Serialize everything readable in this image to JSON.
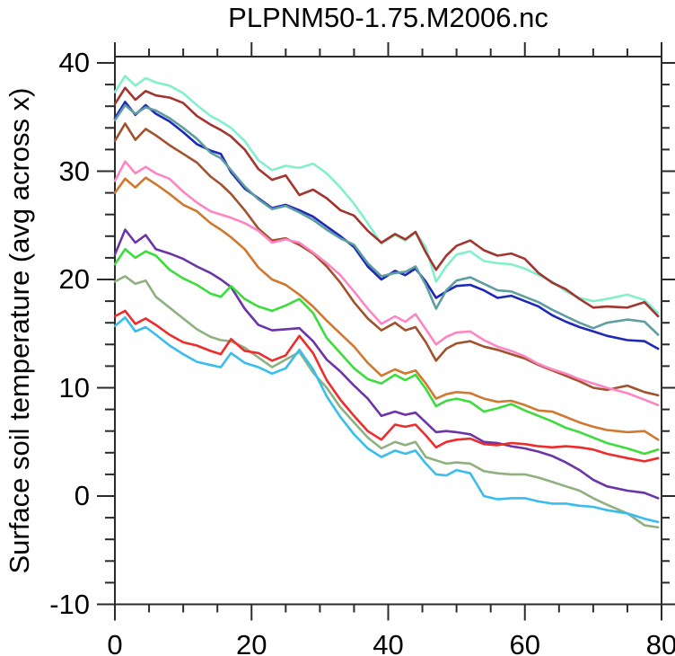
{
  "title": "PLPNM50-1.75.M2006.nc",
  "y_axis_label": "Surface soil temperature (avg across x)",
  "colors": {
    "frame": "#2b2b2b",
    "text": "#000000",
    "background": "#ffffff"
  },
  "chart_data": {
    "type": "line",
    "title": "PLPNM50-1.75.M2006.nc",
    "xlabel": "",
    "ylabel": "Surface soil temperature (avg across x)",
    "xlim": [
      0,
      80
    ],
    "ylim": [
      -10,
      40
    ],
    "x_ticks": [
      0,
      20,
      40,
      60,
      80
    ],
    "y_ticks": [
      40,
      30,
      20,
      10,
      0,
      -10
    ],
    "x_minor_step": 5,
    "y_minor_step": 2,
    "grid": false,
    "legend_position": "none",
    "x": [
      0,
      1.5,
      3,
      4.5,
      6,
      8,
      10,
      12,
      14,
      15.5,
      17,
      19,
      21,
      23,
      25,
      27,
      29,
      31,
      33,
      35,
      37,
      39,
      41,
      42.5,
      44,
      45.5,
      47,
      48.5,
      50,
      52,
      54,
      56,
      58,
      60,
      62,
      64,
      66,
      68,
      70,
      72,
      75,
      77.5,
      79.5
    ],
    "series": [
      {
        "name": "aquamarine",
        "color": "#84EFCD",
        "values": [
          37.3,
          38.8,
          37.9,
          38.6,
          38.2,
          37.9,
          37.2,
          36.1,
          35.1,
          34.6,
          34.0,
          32.8,
          31.0,
          30.1,
          30.5,
          30.3,
          30.7,
          29.8,
          28.5,
          27.0,
          25.2,
          23.3,
          24.1,
          23.6,
          24.3,
          23.0,
          19.8,
          21.2,
          22.3,
          22.6,
          21.7,
          21.5,
          21.4,
          21.0,
          20.4,
          19.8,
          18.9,
          18.3,
          18.0,
          18.2,
          18.6,
          18.1,
          16.9
        ]
      },
      {
        "name": "brown-red",
        "color": "#A3342E",
        "values": [
          36.2,
          37.7,
          36.6,
          37.4,
          37.0,
          36.8,
          36.3,
          35.1,
          34.3,
          33.8,
          33.2,
          32.0,
          30.2,
          29.2,
          29.6,
          27.8,
          28.3,
          27.5,
          26.4,
          25.9,
          24.5,
          23.4,
          24.2,
          23.7,
          24.4,
          22.5,
          20.9,
          22.2,
          23.1,
          23.6,
          22.7,
          22.2,
          22.4,
          21.9,
          20.6,
          19.7,
          19.1,
          18.2,
          17.4,
          17.5,
          17.4,
          17.9,
          16.6
        ]
      },
      {
        "name": "navy-blue",
        "color": "#1E28B8",
        "values": [
          34.9,
          36.4,
          35.2,
          36.1,
          35.3,
          34.6,
          33.6,
          32.5,
          31.9,
          31.6,
          29.9,
          28.4,
          27.5,
          26.6,
          26.9,
          26.4,
          25.8,
          24.9,
          24.0,
          23.0,
          21.2,
          20.0,
          20.8,
          20.4,
          21.0,
          19.8,
          18.3,
          18.9,
          19.4,
          19.5,
          19.0,
          18.3,
          18.5,
          18.0,
          17.5,
          16.7,
          16.1,
          15.6,
          15.2,
          14.8,
          14.4,
          14.3,
          13.6
        ]
      },
      {
        "name": "cadet-blue",
        "color": "#5F9EA0",
        "values": [
          34.7,
          36.1,
          35.3,
          35.9,
          35.6,
          34.9,
          34.0,
          33.0,
          31.7,
          31.2,
          30.1,
          28.6,
          27.4,
          26.5,
          26.8,
          26.2,
          25.5,
          24.6,
          23.8,
          23.2,
          21.5,
          20.3,
          20.6,
          20.7,
          21.2,
          19.5,
          17.3,
          19.0,
          19.9,
          20.2,
          19.6,
          19.0,
          18.9,
          18.4,
          17.9,
          17.2,
          16.6,
          16.0,
          15.5,
          16.0,
          16.3,
          16.1,
          14.9
        ]
      },
      {
        "name": "sienna",
        "color": "#A0522D",
        "values": [
          32.8,
          34.4,
          32.9,
          33.9,
          33.3,
          32.4,
          31.6,
          30.8,
          29.5,
          28.8,
          27.9,
          26.4,
          24.7,
          23.6,
          23.8,
          23.2,
          22.4,
          21.2,
          19.7,
          17.9,
          16.4,
          15.3,
          16.0,
          15.3,
          15.6,
          14.2,
          12.5,
          13.6,
          14.1,
          14.3,
          13.8,
          13.5,
          13.1,
          12.7,
          12.1,
          11.6,
          11.1,
          10.6,
          10.0,
          9.8,
          10.2,
          9.6,
          9.3
        ]
      },
      {
        "name": "pink",
        "color": "#FF85C2",
        "values": [
          29.1,
          30.9,
          29.8,
          30.4,
          29.8,
          29.3,
          28.1,
          27.1,
          26.3,
          26.0,
          25.7,
          25.2,
          24.5,
          23.4,
          23.7,
          23.4,
          22.5,
          21.5,
          20.4,
          18.9,
          17.3,
          15.9,
          16.6,
          16.1,
          16.8,
          15.4,
          14.0,
          14.7,
          15.1,
          15.2,
          14.4,
          13.8,
          13.4,
          12.9,
          12.2,
          11.7,
          11.3,
          10.8,
          10.4,
          10.0,
          9.5,
          8.9,
          8.4
        ]
      },
      {
        "name": "orange",
        "color": "#D2772E",
        "values": [
          28.0,
          29.3,
          28.5,
          29.4,
          28.8,
          27.9,
          26.9,
          26.3,
          25.2,
          24.6,
          23.9,
          22.8,
          21.1,
          20.0,
          19.5,
          18.6,
          17.5,
          16.2,
          15.0,
          13.8,
          12.3,
          11.1,
          11.7,
          11.3,
          11.6,
          10.4,
          9.0,
          9.4,
          9.6,
          9.5,
          9.0,
          8.7,
          8.8,
          8.4,
          7.9,
          7.8,
          7.3,
          6.8,
          6.4,
          6.1,
          5.9,
          6.0,
          5.2
        ]
      },
      {
        "name": "purple",
        "color": "#6B34A8",
        "values": [
          22.3,
          24.6,
          23.4,
          24.1,
          22.8,
          22.4,
          21.9,
          21.2,
          20.6,
          20.0,
          19.3,
          17.3,
          15.8,
          15.3,
          15.4,
          15.5,
          14.3,
          12.6,
          11.5,
          10.2,
          9.0,
          7.4,
          7.8,
          7.5,
          7.7,
          6.8,
          5.9,
          6.0,
          5.9,
          5.7,
          5.0,
          4.9,
          4.6,
          4.4,
          4.1,
          3.7,
          3.1,
          2.4,
          1.5,
          0.9,
          0.5,
          0.3,
          -0.2
        ]
      },
      {
        "name": "green",
        "color": "#3CDC3C",
        "values": [
          21.4,
          22.8,
          22.0,
          22.6,
          22.2,
          20.9,
          20.1,
          19.5,
          18.7,
          18.4,
          19.4,
          18.2,
          17.5,
          17.1,
          17.6,
          18.2,
          16.9,
          14.6,
          13.2,
          11.8,
          10.8,
          10.4,
          11.2,
          10.7,
          11.2,
          9.9,
          8.3,
          8.8,
          9.0,
          8.7,
          7.8,
          8.1,
          8.5,
          7.9,
          7.4,
          6.9,
          6.3,
          5.9,
          5.4,
          4.9,
          4.4,
          3.9,
          4.3
        ]
      },
      {
        "name": "dark-sea-green",
        "color": "#8FB080",
        "values": [
          19.8,
          20.3,
          19.6,
          19.9,
          18.4,
          17.4,
          16.4,
          15.4,
          14.7,
          14.4,
          14.3,
          13.7,
          12.8,
          11.9,
          12.6,
          13.3,
          11.4,
          10.0,
          8.2,
          6.8,
          5.4,
          4.4,
          5.0,
          4.7,
          5.0,
          3.6,
          3.3,
          3.0,
          3.1,
          3.0,
          2.3,
          2.1,
          2.0,
          2.0,
          1.7,
          1.3,
          0.9,
          0.5,
          -0.2,
          -0.8,
          -1.6,
          -2.7,
          -2.9
        ]
      },
      {
        "name": "red",
        "color": "#EE2C2C",
        "values": [
          16.6,
          17.1,
          15.9,
          16.4,
          15.8,
          14.9,
          14.2,
          13.9,
          13.4,
          13.1,
          14.5,
          13.4,
          13.2,
          12.5,
          13.0,
          14.8,
          13.2,
          10.7,
          8.9,
          7.4,
          6.0,
          5.2,
          6.6,
          6.4,
          6.6,
          5.6,
          4.5,
          5.0,
          5.2,
          5.3,
          4.8,
          4.7,
          4.9,
          4.8,
          4.6,
          4.5,
          4.6,
          4.5,
          4.3,
          3.9,
          3.5,
          3.2,
          3.5
        ]
      },
      {
        "name": "sky-blue",
        "color": "#38BDEE",
        "values": [
          15.7,
          16.5,
          15.2,
          15.6,
          14.9,
          13.9,
          13.1,
          12.4,
          12.1,
          11.9,
          13.2,
          12.3,
          11.9,
          11.3,
          11.8,
          13.5,
          11.7,
          9.2,
          7.3,
          5.7,
          4.4,
          3.6,
          4.2,
          3.9,
          4.2,
          3.0,
          2.0,
          1.9,
          2.4,
          2.1,
          0.0,
          -0.3,
          -0.2,
          -0.2,
          -0.5,
          -0.7,
          -0.7,
          -0.9,
          -1.0,
          -1.3,
          -1.6,
          -2.1,
          -2.4
        ]
      }
    ]
  }
}
